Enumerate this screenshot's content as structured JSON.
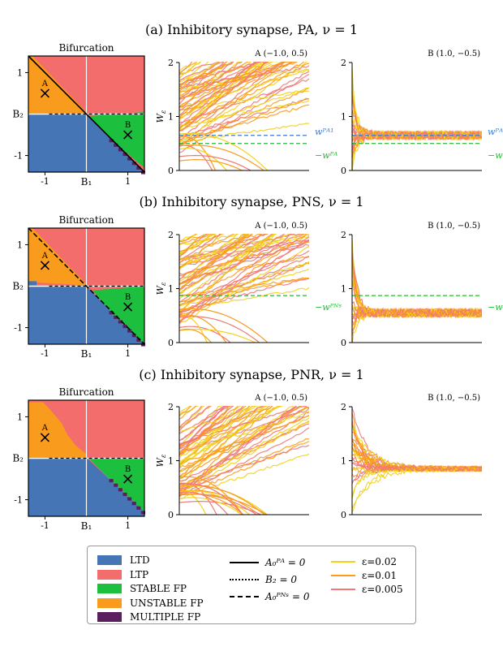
{
  "colors": {
    "ltd": "#4575b4",
    "ltp": "#f46d6d",
    "stable": "#1dbf3f",
    "unstable": "#f99b1c",
    "multiple": "#5a1e5e",
    "eps_02": "#f2d21a",
    "eps_01": "#f99b1c",
    "eps_005": "#f07878",
    "wpa_blue": "#3a7fd0",
    "wpa_green": "#22bb33"
  },
  "rows": [
    {
      "title": "(a) Inhibitory synapse, PA, ν = 1",
      "bifurcation_title": "Bifurcation",
      "boundary_style": "solid",
      "panel_a_title": "A (−1.0, 0.5)",
      "panel_b_title": "B (1.0, −0.5)",
      "ylabel": "W_ε",
      "hlines": [
        {
          "label": "wᴾᴬ¹",
          "value": 0.65,
          "color": "wpa_blue"
        },
        {
          "label": "−wᴾᴬ",
          "value": 0.5,
          "color": "wpa_green"
        }
      ]
    },
    {
      "title": "(b) Inhibitory synapse, PNS, ν = 1",
      "bifurcation_title": "Bifurcation",
      "boundary_style": "dashed",
      "panel_a_title": "A (−1.0, 0.5)",
      "panel_b_title": "B (1.0, −0.5)",
      "ylabel": "W_ε",
      "hlines": [
        {
          "label": "−wᴾᴺˢ",
          "value": 0.87,
          "color": "wpa_green"
        }
      ]
    },
    {
      "title": "(c) Inhibitory synapse, PNR, ν = 1",
      "bifurcation_title": "Bifurcation",
      "boundary_style": "none",
      "panel_a_title": "A (−1.0, 0.5)",
      "panel_b_title": "B (1.0, −0.5)",
      "ylabel": "W_ε",
      "hlines": []
    }
  ],
  "bifurcation_axes": {
    "xlabel": "B₁",
    "ylabel": "B₂",
    "x_ticks": [
      "-1",
      "1"
    ],
    "y_ticks": [
      "1",
      "-1"
    ],
    "point_a_label": "A",
    "point_b_label": "B"
  },
  "chart_data": [
    {
      "type": "line",
      "panel": "A (−1.0, 0.5)",
      "row": "a",
      "ylim": [
        0,
        2
      ],
      "y_ticks": [
        0,
        1,
        2
      ],
      "series": [
        {
          "name": "ε=0.02",
          "color": "eps_02"
        },
        {
          "name": "ε=0.01",
          "color": "eps_01"
        },
        {
          "name": "ε=0.005",
          "color": "eps_005"
        }
      ],
      "reference_lines": [
        0.65,
        0.5
      ]
    },
    {
      "type": "line",
      "panel": "B (1.0, −0.5)",
      "row": "a",
      "ylim": [
        0,
        2
      ],
      "y_ticks": [
        0,
        1,
        2
      ],
      "steady_value": 0.65,
      "reference_lines": [
        0.65,
        0.5
      ]
    },
    {
      "type": "line",
      "panel": "A (−1.0, 0.5)",
      "row": "b",
      "ylim": [
        0,
        2
      ],
      "y_ticks": [
        0,
        1,
        2
      ],
      "reference_lines": [
        0.87
      ]
    },
    {
      "type": "line",
      "panel": "B (1.0, −0.5)",
      "row": "b",
      "ylim": [
        0,
        2
      ],
      "y_ticks": [
        0,
        1,
        2
      ],
      "steady_value": 0.55,
      "reference_lines": [
        0.87
      ]
    },
    {
      "type": "line",
      "panel": "A (−1.0, 0.5)",
      "row": "c",
      "ylim": [
        0,
        2
      ],
      "y_ticks": [
        0,
        1,
        2
      ]
    },
    {
      "type": "line",
      "panel": "B (1.0, −0.5)",
      "row": "c",
      "ylim": [
        0,
        2
      ],
      "y_ticks": [
        0,
        1,
        2
      ],
      "steady_value": 0.85
    }
  ],
  "legend": {
    "regions": [
      {
        "label": "LTD",
        "color": "ltd"
      },
      {
        "label": "LTP",
        "color": "ltp"
      },
      {
        "label": "STABLE FP",
        "color": "stable"
      },
      {
        "label": "UNSTABLE FP",
        "color": "unstable"
      },
      {
        "label": "MULTIPLE FP",
        "color": "multiple"
      }
    ],
    "lines": [
      {
        "label": "A₀ᴾᴬ = 0",
        "style": "solid"
      },
      {
        "label": "B₂ = 0",
        "style": "dotted"
      },
      {
        "label": "A₀ᴾᴺˢ = 0",
        "style": "dashed"
      }
    ],
    "eps": [
      {
        "label": "ε=0.02",
        "color": "eps_02"
      },
      {
        "label": "ε=0.01",
        "color": "eps_01"
      },
      {
        "label": "ε=0.005",
        "color": "eps_005"
      }
    ]
  }
}
